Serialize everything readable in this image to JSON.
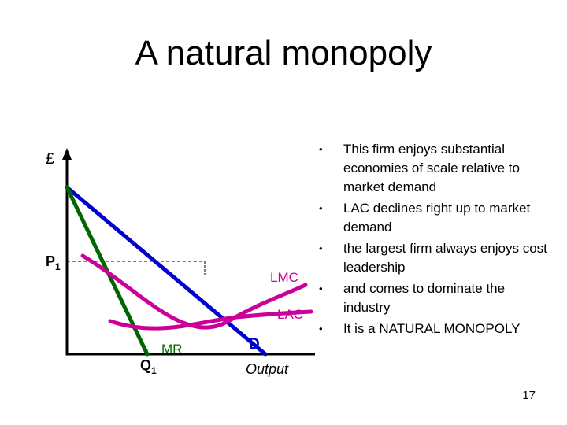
{
  "slide": {
    "title": "A natural monopoly",
    "page_number": "17"
  },
  "diagram": {
    "y_axis_label": "£",
    "x_axis_label": "Output",
    "price_label": "P",
    "price_subscript": "1",
    "quantity_label": "Q",
    "quantity_subscript": "1",
    "curves": [
      {
        "label": "LMC",
        "color": "#cc0099"
      },
      {
        "label": "LAC",
        "color": "#cc0099"
      },
      {
        "label": "MR",
        "color": "#006600"
      },
      {
        "label": "D",
        "color": "#0000cc"
      }
    ]
  },
  "bullets": [
    "This firm enjoys substantial economies of scale relative to market demand",
    "LAC declines right up to market demand",
    "the largest firm always enjoys cost leadership",
    "and comes to dominate the industry",
    "It is a NATURAL MONOPOLY"
  ],
  "colors": {
    "cost_curves": "#cc0099",
    "demand": "#0000cc",
    "marginal_revenue": "#006600",
    "axes": "#000000"
  }
}
